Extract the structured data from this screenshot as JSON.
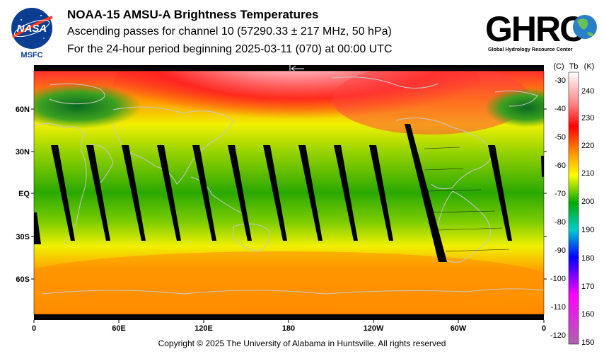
{
  "header": {
    "title": "NOAA-15 AMSU-A Brightness Temperatures",
    "subtitle": "Ascending passes for channel 10 (57290.33 ± 217 MHz, 50 hPa)",
    "period": "For the 24-hour period beginning 2025-03-11 (070) at 00:00 UTC"
  },
  "logos": {
    "nasa_text": "NASA",
    "msfc_text": "MSFC",
    "ghrc_text": "GHRC",
    "ghrc_subtext": "Global Hydrology Resource Center"
  },
  "map": {
    "lat_labels": [
      "60N",
      "30N",
      "EQ",
      "30S",
      "60S"
    ],
    "lon_labels": [
      "0",
      "60E",
      "120E",
      "180",
      "120W",
      "60W",
      "0"
    ]
  },
  "colorbar": {
    "celsius_header": "(C)",
    "tb_header": "Tb",
    "kelvin_header": "(K)",
    "celsius_ticks": [
      "-30",
      "-40",
      "-50",
      "-60",
      "-70",
      "-80",
      "-90",
      "-100",
      "-110",
      "-120"
    ],
    "kelvin_ticks": [
      "240",
      "230",
      "220",
      "210",
      "200",
      "190",
      "180",
      "170",
      "160",
      "150"
    ],
    "colors": [
      "#ffffff",
      "#ff0000",
      "#ff9900",
      "#ffff00",
      "#00aa00",
      "#00cccc",
      "#0000ff",
      "#ff00ff",
      "#aa66aa"
    ]
  },
  "footer": {
    "copyright": "Copyright © 2025 The University of Alabama in Huntsville.  All rights reserved"
  }
}
